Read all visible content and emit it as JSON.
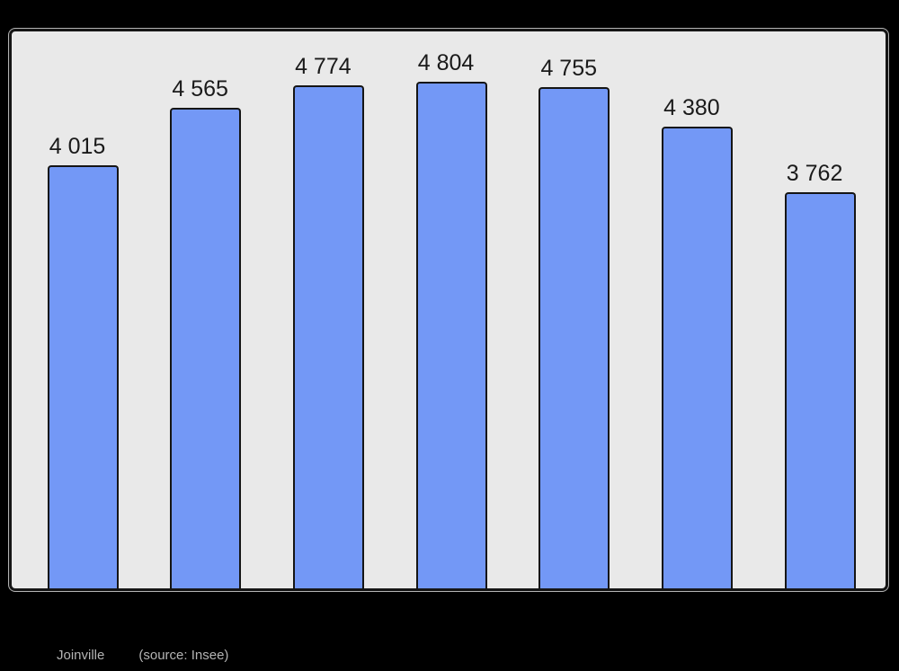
{
  "colors": {
    "background": "#000000",
    "panel_fill": "#e9e9e9",
    "panel_border": "#151515",
    "bar_fill": "#7398f6",
    "bar_border": "#151515",
    "label_text": "#1a1a1a",
    "caption_text": "#b4b4b4"
  },
  "caption": {
    "title": "Joinville",
    "source": "(source: Insee)"
  },
  "chart_data": {
    "type": "bar",
    "categories": [],
    "values": [
      4015,
      4565,
      4774,
      4804,
      4755,
      4380,
      3762
    ],
    "value_labels": [
      "4 015",
      "4 565",
      "4 774",
      "4 804",
      "4 755",
      "4 380",
      "3 762"
    ],
    "title": "Joinville",
    "subtitle": "(source: Insee)",
    "xlabel": "",
    "ylabel": "",
    "ylim": [
      0,
      5330
    ],
    "grid": false,
    "legend_position": "none",
    "bar_color": "#7398f6",
    "value_labels_position": "above-bars"
  }
}
